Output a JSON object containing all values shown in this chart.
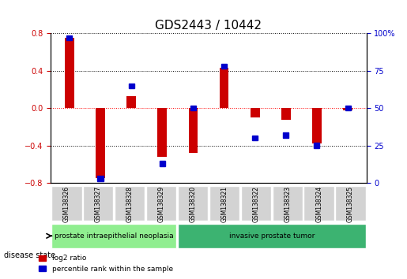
{
  "title": "GDS2443 / 10442",
  "samples": [
    "GSM138326",
    "GSM138327",
    "GSM138328",
    "GSM138329",
    "GSM138320",
    "GSM138321",
    "GSM138322",
    "GSM138323",
    "GSM138324",
    "GSM138325"
  ],
  "log2_ratio": [
    0.75,
    -0.75,
    0.13,
    -0.52,
    -0.48,
    0.43,
    -0.1,
    -0.12,
    -0.38,
    -0.02
  ],
  "percentile_rank": [
    97,
    3,
    65,
    13,
    50,
    78,
    30,
    32,
    25,
    50
  ],
  "groups": [
    {
      "label": "prostate intraepithelial neoplasia",
      "start": 0,
      "end": 3,
      "color": "#90ee90"
    },
    {
      "label": "invasive prostate tumor",
      "start": 4,
      "end": 9,
      "color": "#3cb371"
    }
  ],
  "ylim_left": [
    -0.8,
    0.8
  ],
  "ylim_right": [
    0,
    100
  ],
  "yticks_left": [
    -0.8,
    -0.4,
    0.0,
    0.4,
    0.8
  ],
  "yticks_right": [
    0,
    25,
    50,
    75,
    100
  ],
  "bar_width": 0.3,
  "red_color": "#cc0000",
  "blue_color": "#0000cc",
  "grid_color": "#000000",
  "legend_red": "log2 ratio",
  "legend_blue": "percentile rank within the sample",
  "disease_state_label": "disease state",
  "title_fontsize": 11,
  "tick_fontsize": 7,
  "label_fontsize": 8
}
